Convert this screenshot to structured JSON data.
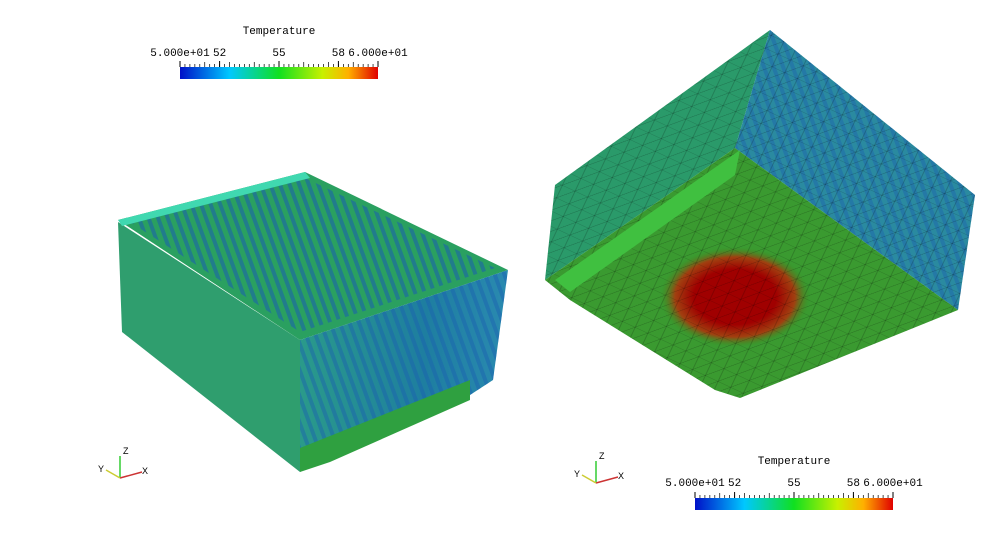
{
  "views": [
    {
      "colorbar": {
        "title": "Temperature",
        "ticks": [
          {
            "value": 50,
            "label": "5.000e+01"
          },
          52,
          55,
          58,
          {
            "value": 60,
            "label": "6.000e+01"
          }
        ]
      },
      "axes": {
        "z": "Z",
        "y": "Y",
        "x": "X"
      }
    },
    {
      "colorbar": {
        "title": "Temperature",
        "ticks": [
          {
            "value": 50,
            "label": "5.000e+01"
          },
          52,
          55,
          58,
          {
            "value": 60,
            "label": "6.000e+01"
          }
        ]
      },
      "axes": {
        "z": "Z",
        "y": "Y",
        "x": "X"
      }
    }
  ]
}
